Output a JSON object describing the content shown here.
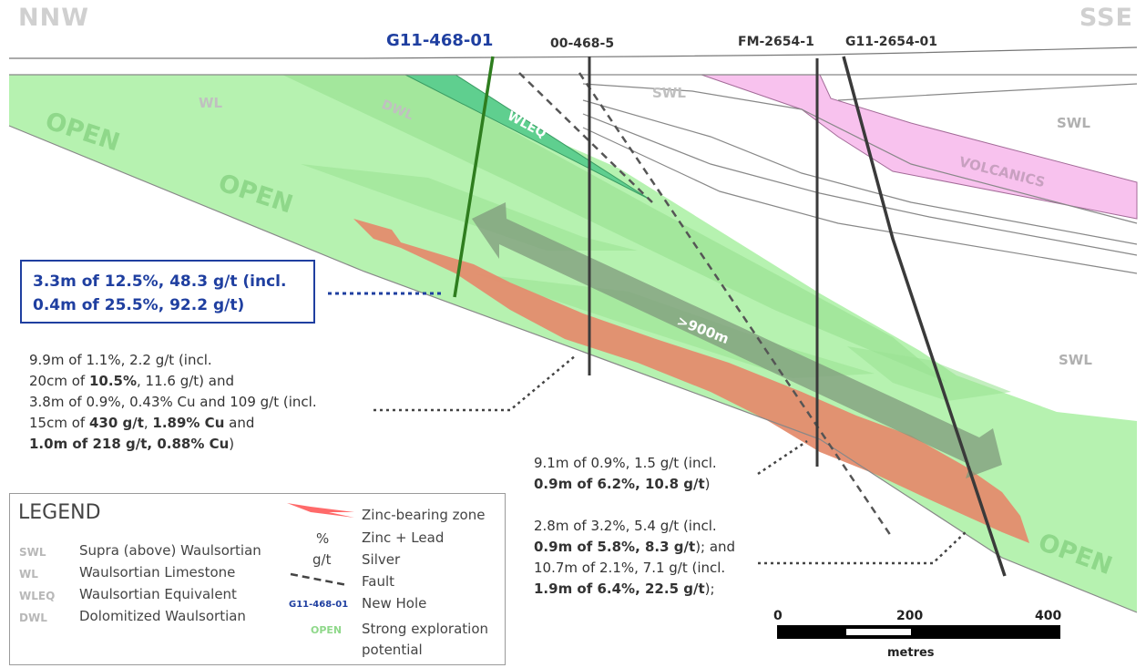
{
  "directions": {
    "left": "NNW",
    "right": "SSE"
  },
  "holes": {
    "new_hole": "G11-468-01",
    "hole_2": "00-468-5",
    "hole_3": "FM-2654-1",
    "hole_4": "G11-2654-01"
  },
  "units": {
    "wl": "WL",
    "dwl": "DWL",
    "wleq": "WLEQ",
    "swl_top": "SWL",
    "swl_right": "SWL",
    "swl_lower": "SWL",
    "volcanics": "VOLCANICS"
  },
  "open_labels": [
    "OPEN",
    "OPEN",
    "OPEN"
  ],
  "strike_length": ">900m",
  "callout": {
    "line1": "3.3m of 12.5%, 48.3 g/t (incl.",
    "line2": "0.4m of 25.5%, 92.2 g/t)"
  },
  "note_468_5": {
    "l1": "9.9m of 1.1%, 2.2 g/t (incl.",
    "l2a": "20cm of ",
    "l2b": "10.5%",
    "l2c": ", 11.6 g/t) and",
    "l3": "3.8m of 0.9%, 0.43% Cu and 109 g/t (incl.",
    "l4a": "15cm of ",
    "l4b": "430 g/t",
    "l4c": ", ",
    "l4d": "1.89% Cu",
    "l4e": " and",
    "l5a": "1.0m of 218 g/t, 0.88% Cu",
    "l5b": ")"
  },
  "note_fm": {
    "l1": "9.1m of 0.9%, 1.5 g/t (incl.",
    "l2a": "0.9m of 6.2%, 10.8 g/t",
    "l2b": ")"
  },
  "note_2654": {
    "l1": "2.8m of 3.2%, 5.4 g/t (incl.",
    "l2a": "0.9m of 5.8%, 8.3 g/t",
    "l2b": "); and",
    "l3": "10.7m of 2.1%, 7.1 g/t (incl.",
    "l4a": "1.9m of 6.4%, 22.5 g/t",
    "l4b": ");"
  },
  "legend": {
    "title": "LEGEND",
    "rows": [
      {
        "abbr": "SWL",
        "text": "Supra (above) Waulsortian"
      },
      {
        "abbr": "WL",
        "text": "Waulsortian Limestone"
      },
      {
        "abbr": "WLEQ",
        "text": "Waulsortian Equivalent"
      },
      {
        "abbr": "DWL",
        "text": "Dolomitized Waulsortian"
      }
    ],
    "zinc_zone": "Zinc-bearing zone",
    "pct_symbol": "%",
    "pct_text": "Zinc + Lead",
    "gt_symbol": "g/t",
    "gt_text": "Silver",
    "fault_text": "Fault",
    "new_hole_symbol": "G11-468-01",
    "new_hole_text": "New Hole",
    "open_symbol": "OPEN",
    "open_text_1": "Strong exploration",
    "open_text_2": "potential"
  },
  "scale": {
    "t0": "0",
    "t200": "200",
    "t400": "400",
    "unit": "metres"
  },
  "colors": {
    "green_zone": "#b6f2b0",
    "wleq": "#5fcf8f",
    "zinc": "#e48c6e",
    "volcanics": "#f8c2ee",
    "new_hole": "#2e7d1e",
    "blue_text": "#1f3fa0"
  }
}
